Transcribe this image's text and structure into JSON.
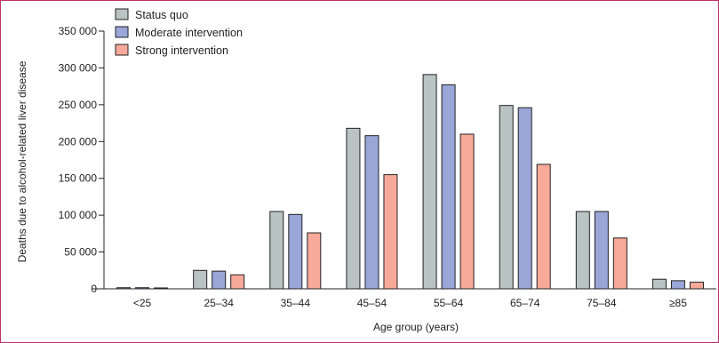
{
  "chart_data": {
    "type": "bar",
    "xlabel": "Age group (years)",
    "ylabel": "Deaths due to alcohol-related liver disease",
    "ylim": [
      0,
      350000
    ],
    "yticks": [
      0,
      50000,
      100000,
      150000,
      200000,
      250000,
      300000,
      350000
    ],
    "ytick_labels": [
      "0",
      "50 000",
      "100 000",
      "150 000",
      "200 000",
      "250 000",
      "300 000",
      "350 000"
    ],
    "categories": [
      "<25",
      "25–34",
      "35–44",
      "45–54",
      "55–64",
      "65–74",
      "75–84",
      "≥85"
    ],
    "legend_position": "top-left",
    "grid": false,
    "series": [
      {
        "name": "Status quo",
        "color": "#b9c3c4",
        "values": [
          1500,
          25000,
          105000,
          218000,
          291000,
          249000,
          105000,
          13000
        ]
      },
      {
        "name": "Moderate intervention",
        "color": "#9aa6d8",
        "values": [
          1500,
          24000,
          101000,
          208000,
          277000,
          246000,
          105000,
          11000
        ]
      },
      {
        "name": "Strong intervention",
        "color": "#f7a99a",
        "values": [
          1200,
          19000,
          76000,
          155000,
          210000,
          169000,
          69000,
          9000
        ]
      }
    ]
  }
}
